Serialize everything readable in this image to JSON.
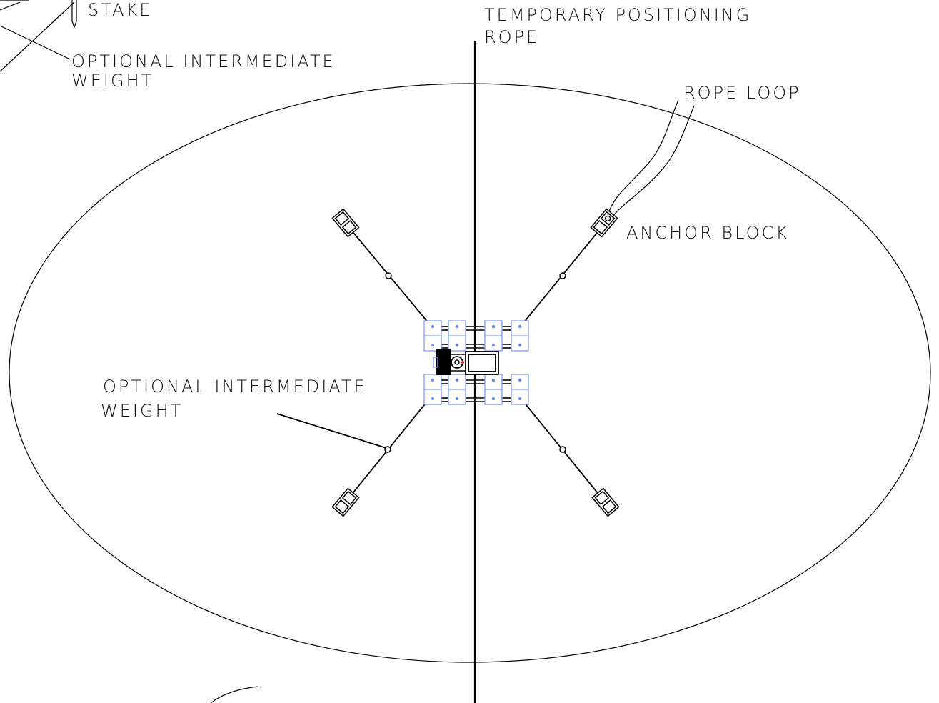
{
  "labels": {
    "stake": "STAKE",
    "optional_weight_top_line1": "OPTIONAL INTERMEDIATE",
    "optional_weight_top_line2": "WEIGHT",
    "temp_rope_line1": "TEMPORARY POSITIONING",
    "temp_rope_line2": "ROPE",
    "rope_loop": "ROPE LOOP",
    "anchor_block": "ANCHOR BLOCK",
    "optional_weight_mid_line1": "OPTIONAL INTERMEDIATE",
    "optional_weight_mid_line2": "WEIGHT"
  },
  "colors": {
    "line": "#000000",
    "module_outline": "#7f9cf5",
    "module_dot": "#6f8ff0",
    "accent_red": "#e53935"
  }
}
